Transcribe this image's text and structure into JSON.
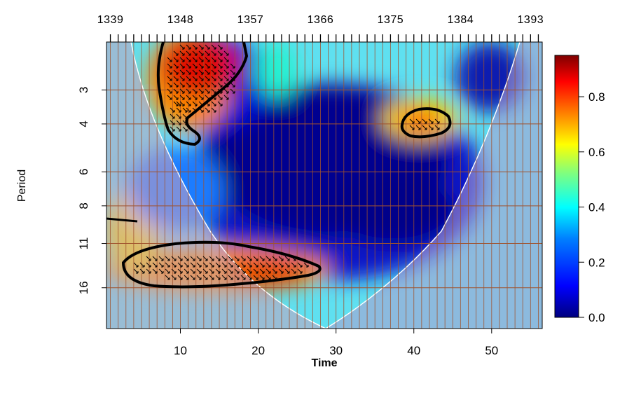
{
  "chart_data": {
    "type": "heatmap",
    "title": "",
    "xlabel": "Time",
    "ylabel": "Period",
    "x_range": [
      0.5,
      56.5
    ],
    "x_ticks": [
      10,
      20,
      30,
      40,
      50
    ],
    "x_tick_labels": [
      "10",
      "20",
      "30",
      "40",
      "50"
    ],
    "y_scale": "log2",
    "y_range": [
      2,
      22.6
    ],
    "y_ticks": [
      3,
      4,
      6,
      8,
      11,
      16
    ],
    "y_tick_labels": [
      "3",
      "4",
      "6",
      "8",
      "11",
      "16"
    ],
    "top_axis_labels": [
      "1339",
      "1348",
      "1357",
      "1366",
      "1375",
      "1384",
      "1393"
    ],
    "top_axis_ticks_at_x": [
      1,
      10,
      19,
      28,
      37,
      46,
      55
    ],
    "colorbar": {
      "min": 0.0,
      "max": 0.95,
      "ticks": [
        0.0,
        0.2,
        0.4,
        0.6,
        0.8
      ],
      "tick_labels": [
        "0.0",
        "0.2",
        "0.4",
        "0.6",
        "0.8"
      ],
      "colors": [
        "#00007f",
        "#0000ff",
        "#007fff",
        "#00ffff",
        "#7fff7f",
        "#ffff00",
        "#ff7f00",
        "#ff0000",
        "#7f0000"
      ]
    },
    "significant_regions": [
      {
        "name": "upper-left",
        "x_center": 11.5,
        "period_center": 3.0
      },
      {
        "name": "upper-right",
        "x_center": 41.5,
        "period_center": 4.0
      },
      {
        "name": "lower-band",
        "x_center": 15.5,
        "period_center": 11.5
      },
      {
        "name": "left-edge",
        "x_center": 3.0,
        "period_center": 8.8
      }
    ],
    "cone_of_influence": true,
    "grid": true
  }
}
